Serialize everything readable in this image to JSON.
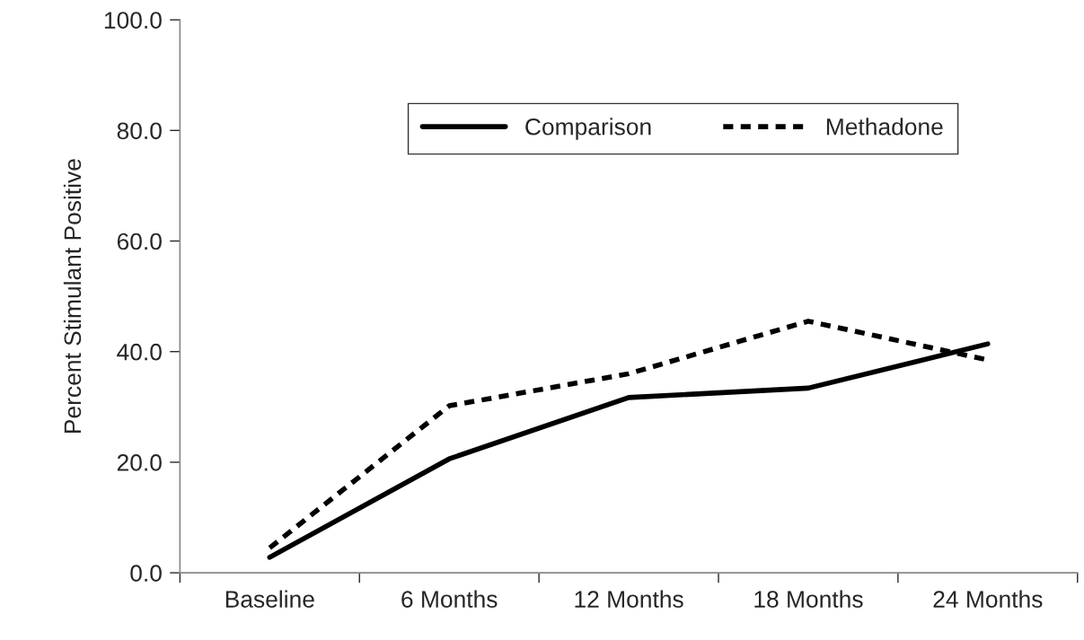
{
  "chart_data": {
    "type": "line",
    "ylabel": "Percent Stimulant Positive",
    "categories": [
      "Baseline",
      "6 Months",
      "12 Months",
      "18 Months",
      "24 Months"
    ],
    "series": [
      {
        "name": "Comparison",
        "color": "#000000",
        "line_style": "solid",
        "values": [
          2.8,
          20.6,
          31.7,
          33.4,
          41.4
        ]
      },
      {
        "name": "Methadone",
        "color": "#000000",
        "line_style": "dashed",
        "values": [
          4.5,
          30.2,
          36.0,
          45.5,
          38.5
        ]
      }
    ],
    "ylim": [
      0,
      100
    ],
    "yticks": [
      {
        "value": 0,
        "label": "0.0"
      },
      {
        "value": 20,
        "label": "20.0"
      },
      {
        "value": 40,
        "label": "40.0"
      },
      {
        "value": 60,
        "label": "60.0"
      },
      {
        "value": 80,
        "label": "80.0"
      },
      {
        "value": 100,
        "label": "100.0"
      }
    ],
    "grid": false,
    "legend": "top right",
    "marker": "none"
  }
}
